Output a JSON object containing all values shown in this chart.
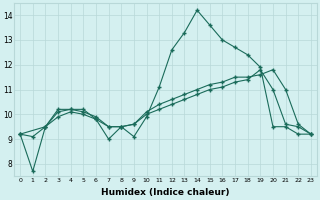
{
  "line1": {
    "x": [
      0,
      1,
      2,
      3,
      4,
      5,
      6,
      7,
      8,
      9,
      10,
      11,
      12,
      13,
      14,
      15,
      16,
      17,
      18,
      19,
      20,
      21,
      22,
      23
    ],
    "y": [
      9.2,
      7.7,
      9.5,
      10.2,
      10.2,
      10.2,
      9.8,
      9.0,
      9.5,
      9.1,
      9.9,
      11.1,
      12.6,
      13.3,
      14.2,
      13.6,
      13.0,
      12.7,
      12.4,
      11.9,
      9.5,
      9.5,
      9.2,
      9.2
    ]
  },
  "line2": {
    "x": [
      0,
      1,
      2,
      3,
      4,
      5,
      6,
      7,
      8,
      9,
      10,
      11,
      12,
      13,
      14,
      15,
      16,
      17,
      18,
      19,
      20,
      21,
      22,
      23
    ],
    "y": [
      9.2,
      9.1,
      9.5,
      9.9,
      10.1,
      10.0,
      9.8,
      9.5,
      9.5,
      9.6,
      10.0,
      10.2,
      10.4,
      10.6,
      10.8,
      11.0,
      11.1,
      11.3,
      11.4,
      11.8,
      11.0,
      9.6,
      9.5,
      9.2
    ]
  },
  "line3": {
    "x": [
      0,
      2,
      3,
      4,
      5,
      6,
      7,
      8,
      9,
      10,
      11,
      12,
      13,
      14,
      15,
      16,
      17,
      18,
      19,
      20,
      21,
      22,
      23
    ],
    "y": [
      9.2,
      9.5,
      10.1,
      10.2,
      10.1,
      9.9,
      9.5,
      9.5,
      9.6,
      10.1,
      10.4,
      10.6,
      10.8,
      11.0,
      11.2,
      11.3,
      11.5,
      11.5,
      11.6,
      11.8,
      11.0,
      9.6,
      9.2
    ]
  },
  "line_color": "#1a6b5a",
  "bg_color": "#d4f0f0",
  "grid_color": "#b8d8d8",
  "xlabel": "Humidex (Indice chaleur)",
  "xlim": [
    -0.5,
    23.5
  ],
  "ylim": [
    7.5,
    14.5
  ],
  "yticks": [
    8,
    9,
    10,
    11,
    12,
    13,
    14
  ],
  "xticks": [
    0,
    1,
    2,
    3,
    4,
    5,
    6,
    7,
    8,
    9,
    10,
    11,
    12,
    13,
    14,
    15,
    16,
    17,
    18,
    19,
    20,
    21,
    22,
    23
  ],
  "marker": "+"
}
